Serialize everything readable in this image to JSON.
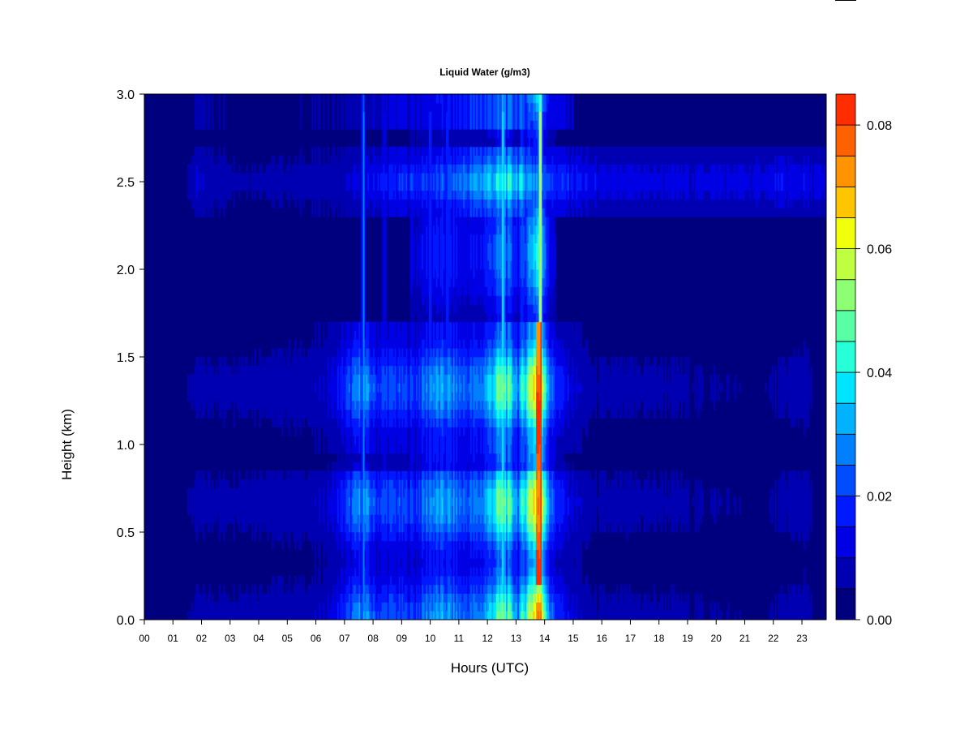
{
  "chart_data": {
    "type": "heatmap",
    "title": "Liquid Water (g/m3)",
    "xlabel": "Hours (UTC)",
    "ylabel": "Height (km)",
    "xlim": [
      0,
      23.85
    ],
    "ylim": [
      0,
      3.0
    ],
    "x_ticks": [
      "00",
      "01",
      "02",
      "03",
      "04",
      "05",
      "06",
      "07",
      "08",
      "09",
      "10",
      "11",
      "12",
      "13",
      "14",
      "15",
      "16",
      "17",
      "18",
      "19",
      "20",
      "21",
      "22",
      "23"
    ],
    "y_ticks": [
      "0.0",
      "0.5",
      "1.0",
      "1.5",
      "2.0",
      "2.5",
      "3.0"
    ],
    "colorbar": {
      "range": [
        0,
        0.085
      ],
      "ticks": [
        "0.00",
        "0.02",
        "0.04",
        "0.06",
        "0.08"
      ],
      "tick_values": [
        0,
        0.02,
        0.04,
        0.06,
        0.08
      ],
      "levels": [
        0,
        0.005,
        0.01,
        0.015,
        0.02,
        0.025,
        0.03,
        0.035,
        0.04,
        0.045,
        0.05,
        0.055,
        0.06,
        0.065,
        0.07,
        0.075,
        0.08,
        0.085
      ],
      "colors": [
        "#00007f",
        "#0000b2",
        "#0000e5",
        "#0019ff",
        "#004cff",
        "#007fff",
        "#00b2ff",
        "#00e5ff",
        "#26ffd8",
        "#59ffa5",
        "#8cff72",
        "#bfff3f",
        "#f2ff0c",
        "#ffc600",
        "#ff9300",
        "#ff6000",
        "#ff2d00",
        "#e50000",
        "#b20000",
        "#7f0000"
      ]
    },
    "features": {
      "low_layer_intensity": [
        {
          "t": 1.7,
          "v": 0.006
        },
        {
          "t": 5.9,
          "v": 0.008
        },
        {
          "t": 6.6,
          "v": 0.012
        },
        {
          "t": 7.65,
          "v": 0.03
        },
        {
          "t": 8.1,
          "v": 0.02
        },
        {
          "t": 8.5,
          "v": 0.022
        },
        {
          "t": 9.5,
          "v": 0.02
        },
        {
          "t": 10.0,
          "v": 0.03
        },
        {
          "t": 10.6,
          "v": 0.03
        },
        {
          "t": 11.2,
          "v": 0.024
        },
        {
          "t": 11.8,
          "v": 0.028
        },
        {
          "t": 12.55,
          "v": 0.05
        },
        {
          "t": 13.1,
          "v": 0.03
        },
        {
          "t": 13.8,
          "v": 0.08
        },
        {
          "t": 14.2,
          "v": 0.025
        },
        {
          "t": 14.7,
          "v": 0.014
        },
        {
          "t": 15.7,
          "v": 0.006
        },
        {
          "t": 16.8,
          "v": 0.006
        },
        {
          "t": 18.4,
          "v": 0.006
        },
        {
          "t": 21.5,
          "v": 0.004
        },
        {
          "t": 23.1,
          "v": 0.008
        }
      ],
      "upper_layer_intensity": [
        {
          "t": 1.8,
          "v": 0.01
        },
        {
          "t": 3.5,
          "v": 0.006
        },
        {
          "t": 6.8,
          "v": 0.008
        },
        {
          "t": 8.3,
          "v": 0.016
        },
        {
          "t": 9.8,
          "v": 0.02
        },
        {
          "t": 10.6,
          "v": 0.022
        },
        {
          "t": 12.6,
          "v": 0.04
        },
        {
          "t": 13.8,
          "v": 0.03
        },
        {
          "t": 14.3,
          "v": 0.02
        },
        {
          "t": 16.0,
          "v": 0.012
        },
        {
          "t": 17.8,
          "v": 0.012
        },
        {
          "t": 19.5,
          "v": 0.012
        },
        {
          "t": 21.0,
          "v": 0.012
        },
        {
          "t": 22.5,
          "v": 0.014
        },
        {
          "t": 23.7,
          "v": 0.012
        }
      ]
    }
  }
}
